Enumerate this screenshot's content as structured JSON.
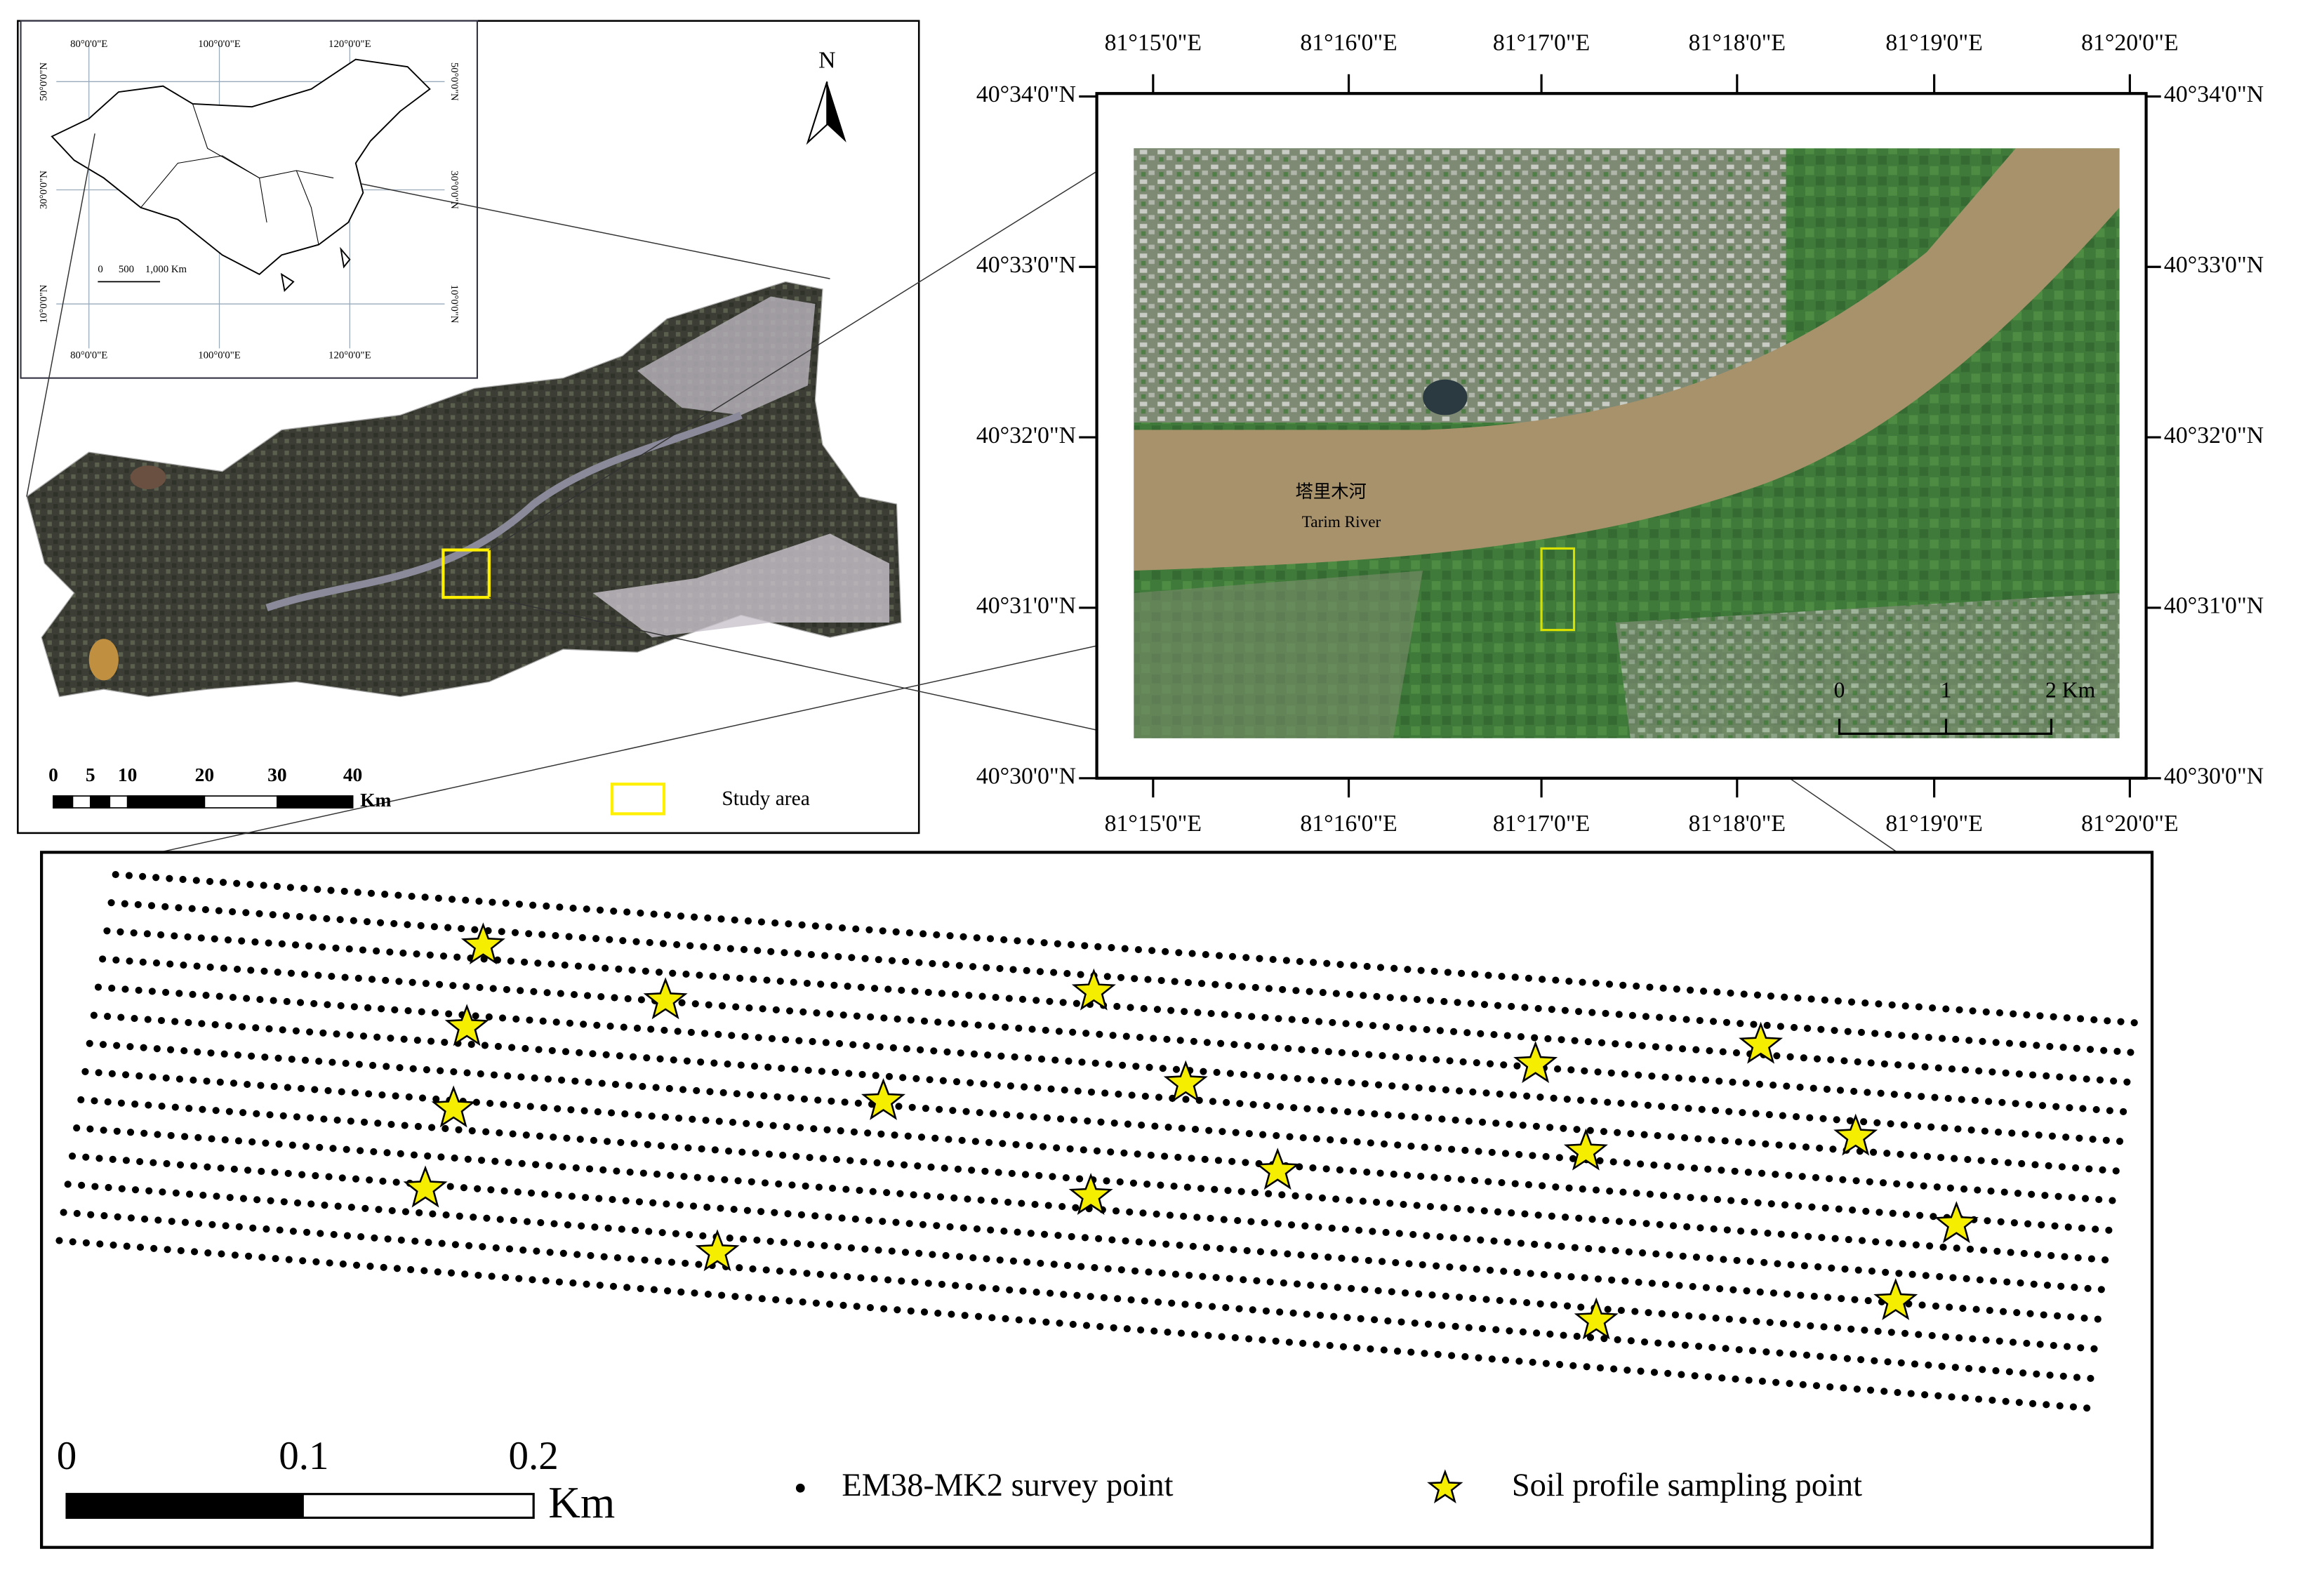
{
  "inset_map": {
    "lon_labels": [
      "80°0'0\"E",
      "100°0'0\"E",
      "120°0'0\"E"
    ],
    "lat_labels": [
      "50°0'0\"N",
      "30°0'0\"N",
      "10°0'0\"N"
    ],
    "scale_labels": [
      "0",
      "500",
      "1,000 Km"
    ]
  },
  "overview_map": {
    "north": "N",
    "scale_labels": [
      "0",
      "5",
      "10",
      "20",
      "30",
      "40"
    ],
    "scale_unit": "Km",
    "legend": "Study area"
  },
  "detail_map": {
    "lon_labels": [
      "81°15'0\"E",
      "81°16'0\"E",
      "81°17'0\"E",
      "81°18'0\"E",
      "81°19'0\"E",
      "81°20'0\"E"
    ],
    "lat_labels": [
      "40°34'0\"N",
      "40°33'0\"N",
      "40°32'0\"N",
      "40°31'0\"N",
      "40°30'0\"N"
    ],
    "river_labels": [
      "塔里木河",
      "Tarim River"
    ],
    "scale_labels": [
      "0",
      "1",
      "2 Km"
    ]
  },
  "survey_map": {
    "scale_labels": [
      "0",
      "0.1",
      "0.2"
    ],
    "scale_unit": "Km",
    "legend": [
      "EM38-MK2 survey point",
      "Soil profile sampling point"
    ]
  }
}
